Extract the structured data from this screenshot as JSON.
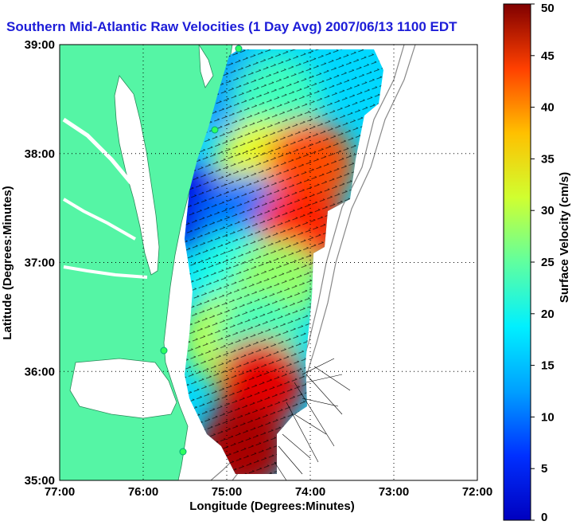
{
  "chart_data": {
    "type": "heatmap",
    "title": "Southern Mid-Atlantic Raw Velocities (1 Day Avg) 2007/06/13 1100 EDT",
    "xlabel": "Longitude (Degrees:Minutes)",
    "ylabel": "Latitude (Degrees:Minutes)",
    "colorbar_label": "Surface Velocity (cm/s)",
    "x_ticks": [
      "77:00",
      "76:00",
      "75:00",
      "74:00",
      "73:00",
      "72:00"
    ],
    "y_ticks": [
      "39:00",
      "38:00",
      "37:00",
      "36:00",
      "35:00"
    ],
    "colorbar_ticks": [
      "50",
      "45",
      "40",
      "35",
      "30",
      "25",
      "20",
      "15",
      "10",
      "5",
      "0"
    ],
    "xlim": [
      -77,
      -72
    ],
    "ylim": [
      35,
      39
    ],
    "clim": [
      0,
      50
    ],
    "grid": true,
    "colors": {
      "land": "#55f5a5",
      "title": "#1d1dd8",
      "grid": "#000000"
    },
    "velocity_field": [
      {
        "lon": -75.0,
        "lat": 38.6,
        "speed": 14
      },
      {
        "lon": -74.4,
        "lat": 38.5,
        "speed": 22
      },
      {
        "lon": -74.6,
        "lat": 37.9,
        "speed": 30
      },
      {
        "lon": -74.0,
        "lat": 37.9,
        "speed": 40
      },
      {
        "lon": -75.4,
        "lat": 37.5,
        "speed": 5
      },
      {
        "lon": -74.8,
        "lat": 37.4,
        "speed": 12
      },
      {
        "lon": -74.1,
        "lat": 37.3,
        "speed": 42
      },
      {
        "lon": -74.9,
        "lat": 36.9,
        "speed": 20
      },
      {
        "lon": -74.4,
        "lat": 36.8,
        "speed": 26
      },
      {
        "lon": -75.0,
        "lat": 36.3,
        "speed": 28
      },
      {
        "lon": -74.6,
        "lat": 36.3,
        "speed": 22
      },
      {
        "lon": -74.6,
        "lat": 35.9,
        "speed": 45
      },
      {
        "lon": -74.8,
        "lat": 35.3,
        "speed": 48
      }
    ]
  }
}
